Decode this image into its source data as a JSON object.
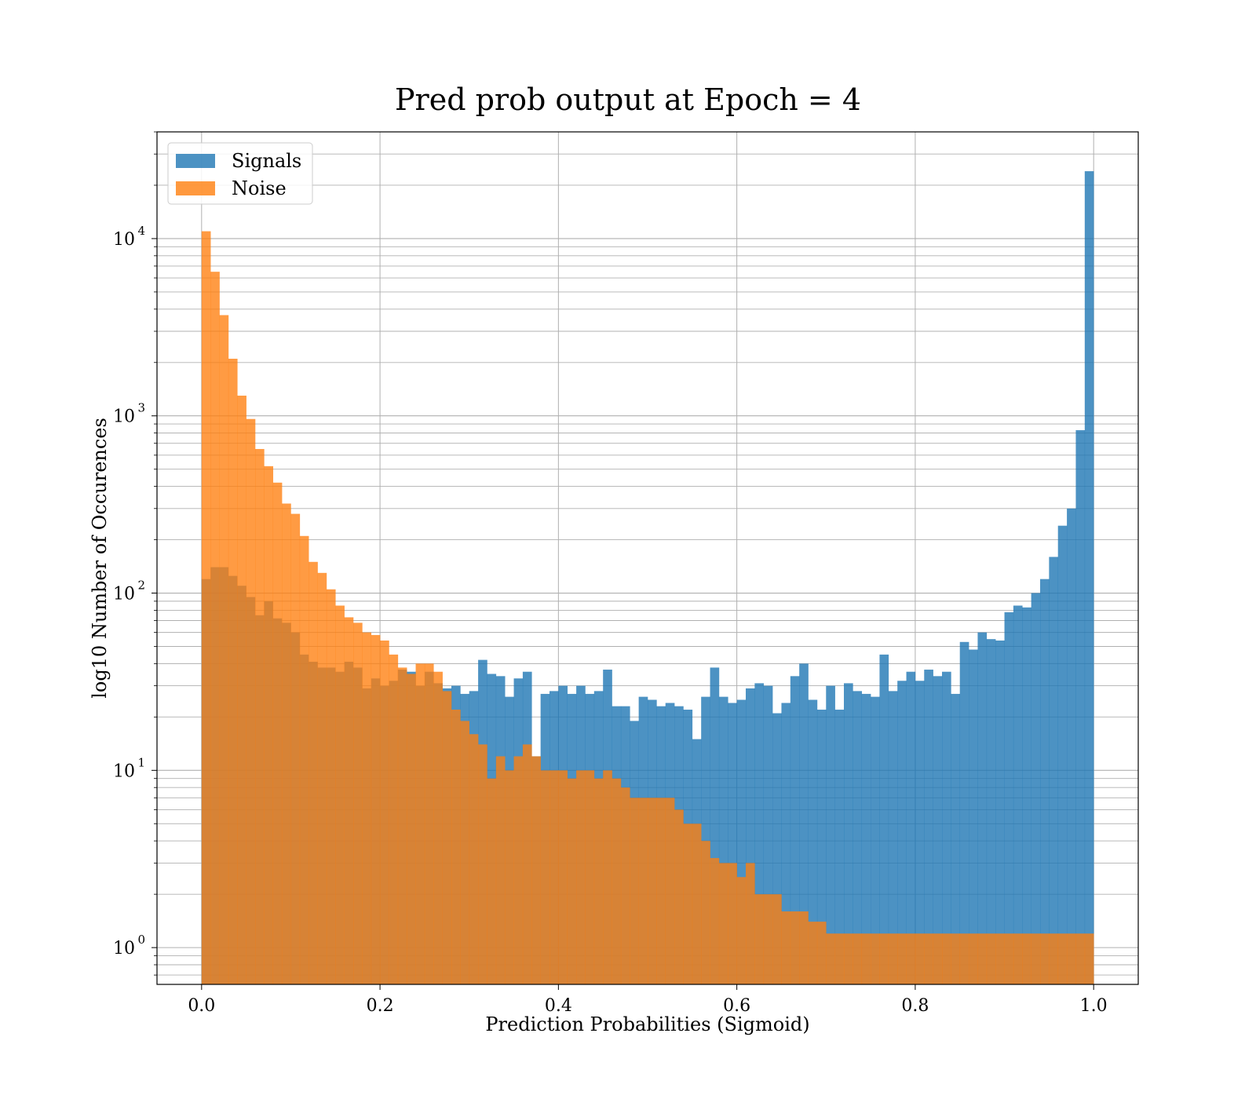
{
  "chart_data": {
    "type": "bar",
    "title": "Pred prob output at Epoch = 4",
    "xlabel": "Prediction Probabilities (Sigmoid)",
    "ylabel": "log10 Number of Occurences",
    "yscale": "log",
    "xlim": [
      -0.05,
      1.05
    ],
    "ylim": [
      0.62,
      40000
    ],
    "grid": true,
    "legend_position": "top-left",
    "bin_width": 0.01,
    "bin_start": 0.0,
    "x_ticks": [
      "0.0",
      "0.2",
      "0.4",
      "0.6",
      "0.8",
      "1.0"
    ],
    "y_ticks": [
      {
        "base": "10",
        "exp": "0"
      },
      {
        "base": "10",
        "exp": "1"
      },
      {
        "base": "10",
        "exp": "2"
      },
      {
        "base": "10",
        "exp": "3"
      },
      {
        "base": "10",
        "exp": "4"
      }
    ],
    "series": [
      {
        "name": "Signals",
        "color": "#1f77b4",
        "values": [
          120,
          140,
          140,
          125,
          110,
          95,
          75,
          90,
          72,
          68,
          60,
          45,
          41,
          38,
          38,
          36,
          41,
          38,
          29,
          33,
          30,
          32,
          37,
          36,
          30,
          36,
          31,
          29,
          30,
          27,
          28,
          42,
          35,
          34,
          26,
          33,
          36,
          12,
          27,
          28,
          30,
          27,
          30,
          27,
          28,
          37,
          23,
          23,
          19,
          26,
          25,
          23,
          24,
          23,
          22,
          15,
          26,
          38,
          26,
          24,
          25,
          29,
          31,
          30,
          21,
          24,
          34,
          40,
          25,
          22,
          30,
          22,
          31,
          28,
          27,
          26,
          45,
          28,
          32,
          36,
          32,
          37,
          34,
          36,
          27,
          53,
          48,
          60,
          55,
          54,
          78,
          85,
          83,
          100,
          120,
          160,
          240,
          300,
          830,
          24000
        ]
      },
      {
        "name": "Noise",
        "color": "#ff7f0e",
        "values": [
          11000,
          6500,
          3700,
          2100,
          1300,
          960,
          650,
          520,
          420,
          320,
          280,
          210,
          150,
          130,
          105,
          85,
          73,
          68,
          60,
          58,
          54,
          45,
          38,
          35,
          40,
          40,
          36,
          28,
          22,
          19,
          16,
          14,
          9,
          12,
          10,
          12,
          14,
          12,
          10,
          10,
          10,
          9,
          10,
          10,
          9,
          10,
          9,
          8,
          7,
          7,
          7,
          7,
          7,
          6,
          5,
          5,
          4,
          3.2,
          3,
          3,
          2.5,
          3,
          2,
          2,
          2,
          1.6,
          1.6,
          1.6,
          1.4,
          1.4,
          1.2,
          1.2,
          1.2,
          1.2,
          1.2,
          1.2,
          1.2,
          1.2,
          1.2,
          1.2,
          1.2,
          1.2,
          1.2,
          1.2,
          1.2,
          1.2,
          1.2,
          1.2,
          1.2,
          1.2,
          1.2,
          1.2,
          1.2,
          1.2,
          1.2,
          1.2,
          1.2,
          1.2,
          1.2,
          1.2
        ]
      }
    ]
  }
}
